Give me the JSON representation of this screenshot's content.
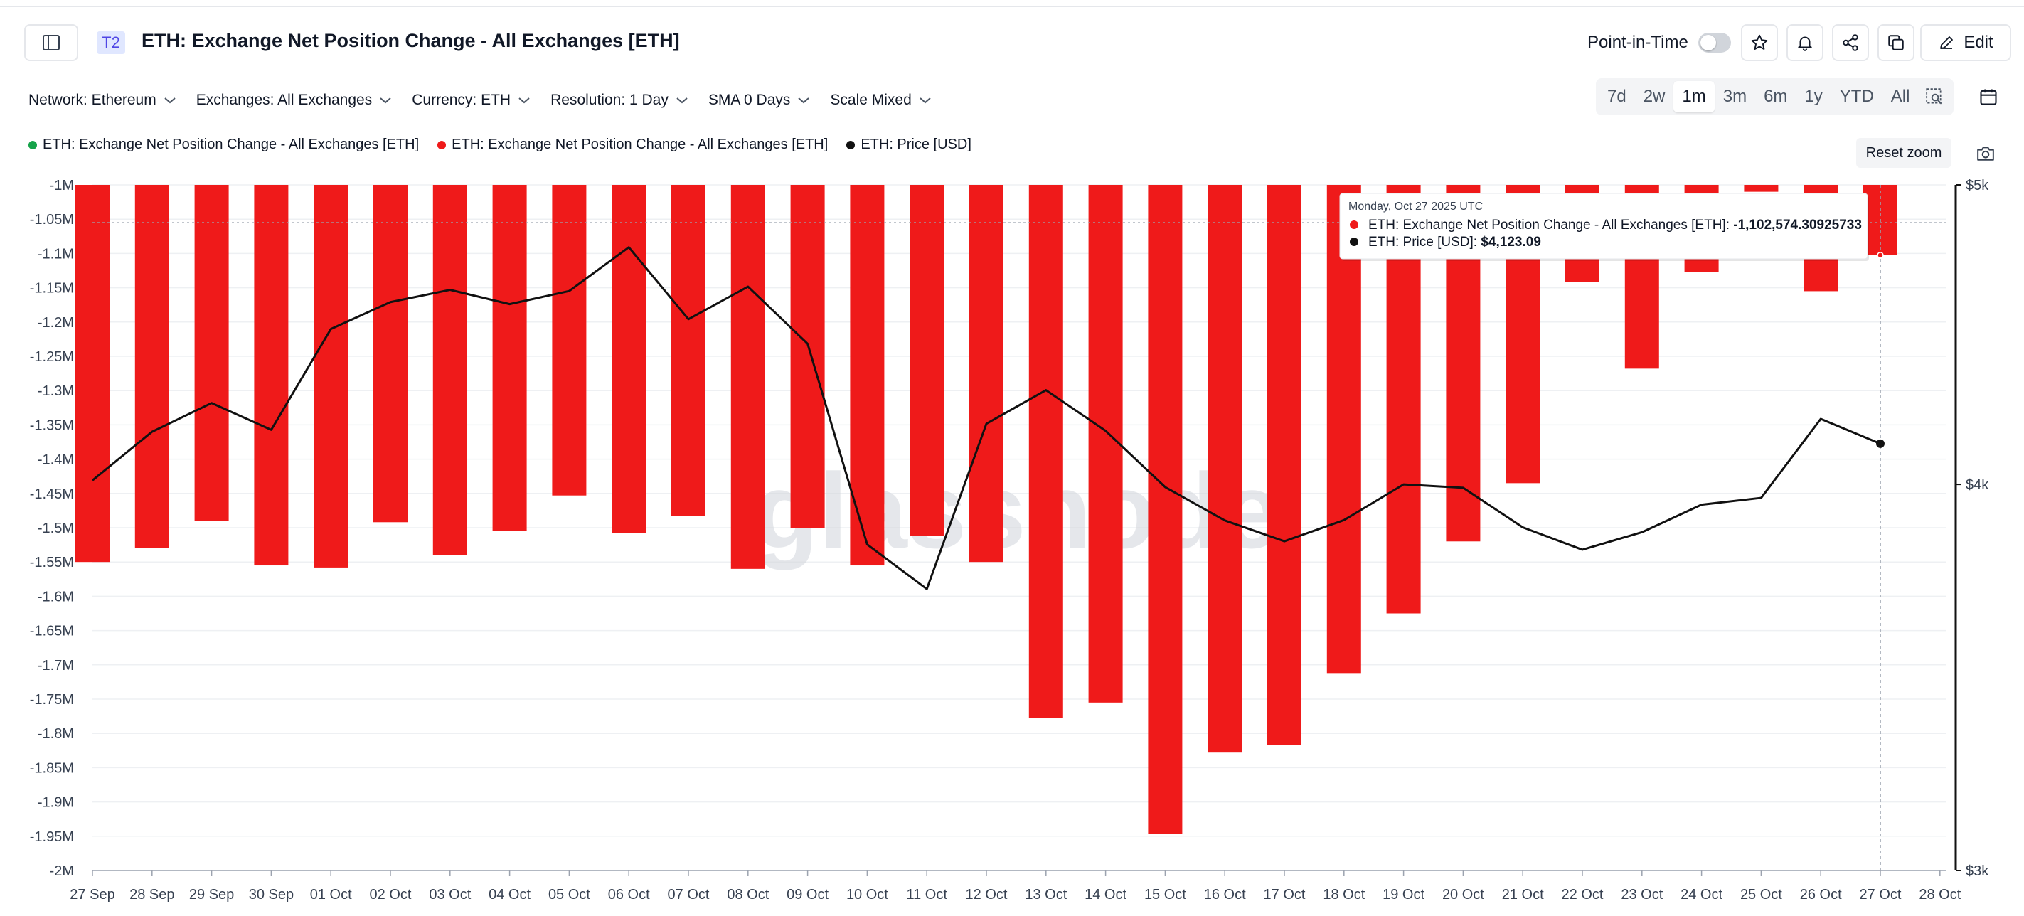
{
  "header": {
    "tier_badge": "T2",
    "title": "ETH: Exchange Net Position Change - All Exchanges [ETH]",
    "point_in_time_label": "Point-in-Time",
    "point_in_time_on": false,
    "edit_label": "Edit"
  },
  "filters": [
    {
      "label": "Network: Ethereum"
    },
    {
      "label": "Exchanges: All Exchanges"
    },
    {
      "label": "Currency: ETH"
    },
    {
      "label": "Resolution: 1 Day"
    },
    {
      "label": "SMA 0 Days"
    },
    {
      "label": "Scale Mixed"
    }
  ],
  "ranges": [
    "7d",
    "2w",
    "1m",
    "3m",
    "6m",
    "1y",
    "YTD",
    "All"
  ],
  "active_range": "1m",
  "legend": [
    {
      "label": "ETH: Exchange Net Position Change - All Exchanges [ETH]",
      "color": "#16a34a"
    },
    {
      "label": "ETH: Exchange Net Position Change - All Exchanges [ETH]",
      "color": "#ef1a1a"
    },
    {
      "label": "ETH: Price [USD]",
      "color": "#111111"
    }
  ],
  "reset_zoom_label": "Reset zoom",
  "watermark": "glassnode",
  "tooltip": {
    "date": "Monday, Oct 27 2025 UTC",
    "rows": [
      {
        "label": "ETH: Exchange Net Position Change - All Exchanges [ETH]: ",
        "value": "-1,102,574.30925733",
        "color": "#ef1a1a"
      },
      {
        "label": "ETH: Price [USD]: ",
        "value": "$4,123.09",
        "color": "#111111"
      }
    ]
  },
  "chart_data": {
    "type": "bar",
    "categories": [
      "27 Sep",
      "28 Sep",
      "29 Sep",
      "30 Sep",
      "01 Oct",
      "02 Oct",
      "03 Oct",
      "04 Oct",
      "05 Oct",
      "06 Oct",
      "07 Oct",
      "08 Oct",
      "09 Oct",
      "10 Oct",
      "11 Oct",
      "12 Oct",
      "13 Oct",
      "14 Oct",
      "15 Oct",
      "16 Oct",
      "17 Oct",
      "18 Oct",
      "19 Oct",
      "20 Oct",
      "21 Oct",
      "22 Oct",
      "23 Oct",
      "24 Oct",
      "25 Oct",
      "26 Oct",
      "27 Oct",
      "28 Oct"
    ],
    "series": [
      {
        "name": "ETH: Exchange Net Position Change - All Exchanges [ETH]",
        "type": "bar",
        "color": "#ef1a1a",
        "axis": "left",
        "values": [
          -1550000,
          -1530000,
          -1490000,
          -1555000,
          -1558000,
          -1492000,
          -1540000,
          -1505000,
          -1453000,
          -1508000,
          -1483000,
          -1560000,
          -1500000,
          -1555000,
          -1512000,
          -1550000,
          -1778000,
          -1755000,
          -1947000,
          -1828000,
          -1817000,
          -1713000,
          -1625000,
          -1520000,
          -1435000,
          -1142000,
          -1268000,
          -1127000,
          -1010000,
          -1155000,
          -1102574.30925733,
          null
        ]
      },
      {
        "name": "ETH: Price [USD]",
        "type": "line",
        "color": "#111111",
        "axis": "right",
        "values": [
          4012,
          4160,
          4250,
          4166,
          4491,
          4582,
          4624,
          4575,
          4620,
          4773,
          4524,
          4635,
          4442,
          3825,
          3700,
          4185,
          4291,
          4163,
          3992,
          3894,
          3834,
          3895,
          4000,
          3990,
          3874,
          3810,
          3860,
          3940,
          3960,
          4200,
          4123.09,
          null
        ]
      }
    ],
    "title": "ETH: Exchange Net Position Change - All Exchanges [ETH]",
    "xlabel": "",
    "ylabel": "",
    "ylim": [
      -2000000,
      -1000000
    ],
    "y_ticks": [
      "-1M",
      "-1.05M",
      "-1.1M",
      "-1.15M",
      "-1.2M",
      "-1.25M",
      "-1.3M",
      "-1.35M",
      "-1.4M",
      "-1.45M",
      "-1.5M",
      "-1.55M",
      "-1.6M",
      "-1.65M",
      "-1.7M",
      "-1.75M",
      "-1.8M",
      "-1.85M",
      "-1.9M",
      "-1.95M",
      "-2M"
    ],
    "y2_scale": "log",
    "y2lim": [
      3000,
      5000
    ],
    "y2_ticks": [
      {
        "value": 5000,
        "label": "$5k"
      },
      {
        "value": 4000,
        "label": "$4k"
      },
      {
        "value": 3000,
        "label": "$3k"
      }
    ],
    "grid": true,
    "crosshair_category": "27 Oct",
    "crosshair_value": -1055000
  }
}
